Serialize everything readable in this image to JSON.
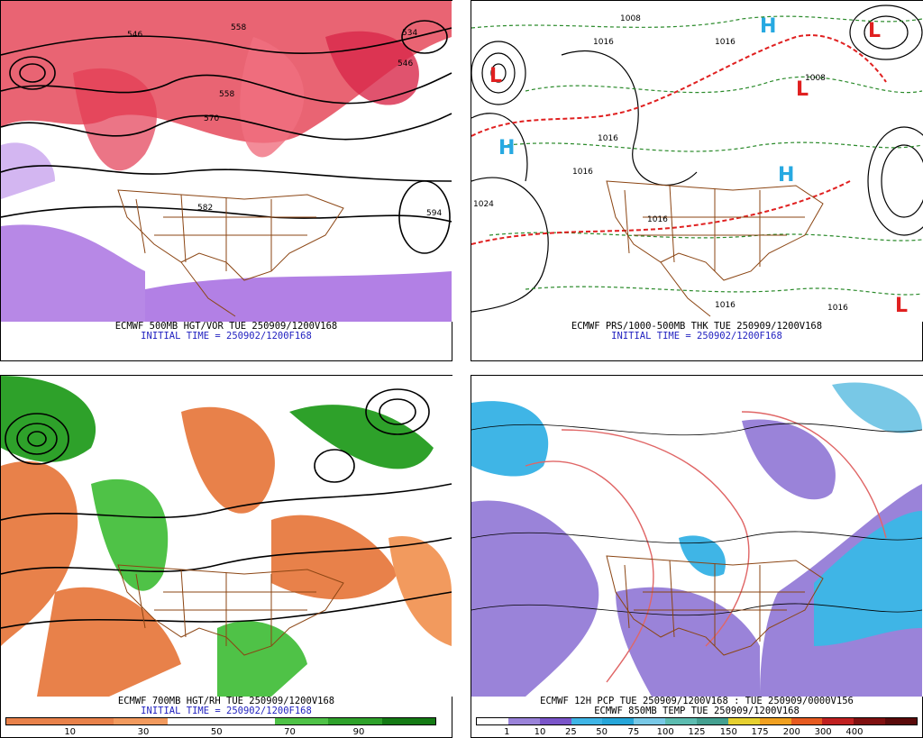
{
  "panels": [
    {
      "id": "p500",
      "title": "ECMWF 500MB HGT/VOR TUE 250909/1200V168",
      "init": "INITIAL TIME = 250902/1200F168",
      "contour_labels": [
        "534",
        "546",
        "558",
        "570",
        "582",
        "594",
        "546",
        "558"
      ]
    },
    {
      "id": "psfc",
      "title": "ECMWF PRS/1000-500MB THK TUE 250909/1200V168",
      "init": "INITIAL TIME = 250902/1200F168",
      "contour_labels": [
        "1008",
        "1016",
        "1016",
        "1008",
        "1016",
        "1016",
        "1016",
        "1024",
        "1016",
        "1016"
      ]
    },
    {
      "id": "p700",
      "title": "ECMWF 700MB HGT/RH TUE 250909/1200V168",
      "init": "INITIAL TIME = 250902/1200F168",
      "colorbar": {
        "colors": [
          "#e8814a",
          "#f29a5e",
          "#f7c9a6",
          "#ffffff",
          "#ffffff",
          "#4fc247",
          "#2ea12a",
          "#147a14"
        ],
        "ticks": [
          "10",
          "30",
          "50",
          "70",
          "90"
        ]
      }
    },
    {
      "id": "ppcp",
      "title": "ECMWF 12H PCP TUE 250909/1200V168 : TUE 250909/0000V156",
      "subtitle": "ECMWF 850MB TEMP TUE 250909/1200V168",
      "colorbar": {
        "colors": [
          "#ffffff",
          "#9a83d9",
          "#7a55c9",
          "#3fb5e6",
          "#26a6d9",
          "#78c8e6",
          "#5cbcb0",
          "#44a090",
          "#e6d030",
          "#f0a020",
          "#e65a20",
          "#c02020",
          "#801010",
          "#5a0a0a"
        ],
        "ticks": [
          "1",
          "10",
          "25",
          "50",
          "75",
          "100",
          "125",
          "150",
          "175",
          "200",
          "300",
          "400"
        ]
      }
    }
  ]
}
